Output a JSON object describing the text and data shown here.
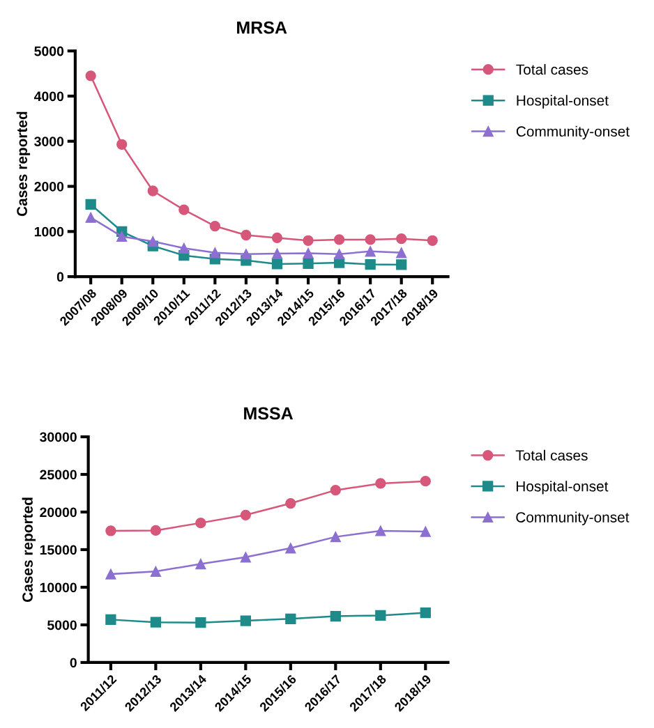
{
  "chart_data": [
    {
      "type": "line",
      "title": "MRSA",
      "ylabel": "Cases reported",
      "categories": [
        "2007/08",
        "2008/09",
        "2009/10",
        "2010/11",
        "2011/12",
        "2012/13",
        "2013/14",
        "2014/15",
        "2015/16",
        "2016/17",
        "2017/18",
        "2018/19"
      ],
      "ylim": [
        0,
        5000
      ],
      "yticks": [
        0,
        1000,
        2000,
        3000,
        4000,
        5000
      ],
      "legend": "top right",
      "grid": false,
      "series": [
        {
          "name": "Total cases",
          "color": "#d6577a",
          "marker": "circle",
          "values": [
            4450,
            2930,
            1900,
            1480,
            1120,
            920,
            860,
            800,
            820,
            820,
            840,
            800
          ]
        },
        {
          "name": "Hospital-onset",
          "color": "#1e8a8a",
          "marker": "square",
          "values": [
            1600,
            1000,
            680,
            470,
            390,
            360,
            280,
            290,
            310,
            270,
            265,
            null
          ]
        },
        {
          "name": "Community-onset",
          "color": "#8c6fd1",
          "marker": "triangle",
          "values": [
            1310,
            890,
            780,
            630,
            530,
            500,
            510,
            520,
            500,
            560,
            530,
            null
          ]
        }
      ]
    },
    {
      "type": "line",
      "title": "MSSA",
      "ylabel": "Cases reported",
      "categories": [
        "2011/12",
        "2012/13",
        "2013/14",
        "2014/15",
        "2015/16",
        "2016/17",
        "2017/18",
        "2018/19"
      ],
      "ylim": [
        0,
        30000
      ],
      "yticks": [
        0,
        5000,
        10000,
        15000,
        20000,
        25000,
        30000
      ],
      "legend": "top right",
      "grid": false,
      "series": [
        {
          "name": "Total cases",
          "color": "#d6577a",
          "marker": "circle",
          "values": [
            17500,
            17550,
            18550,
            19600,
            21150,
            22900,
            23800,
            24100
          ]
        },
        {
          "name": "Hospital-onset",
          "color": "#1e8a8a",
          "marker": "square",
          "values": [
            5700,
            5350,
            5300,
            5550,
            5800,
            6150,
            6250,
            6600
          ]
        },
        {
          "name": "Community-onset",
          "color": "#8c6fd1",
          "marker": "triangle",
          "values": [
            11750,
            12100,
            13100,
            14000,
            15200,
            16700,
            17500,
            17400
          ]
        }
      ]
    }
  ]
}
